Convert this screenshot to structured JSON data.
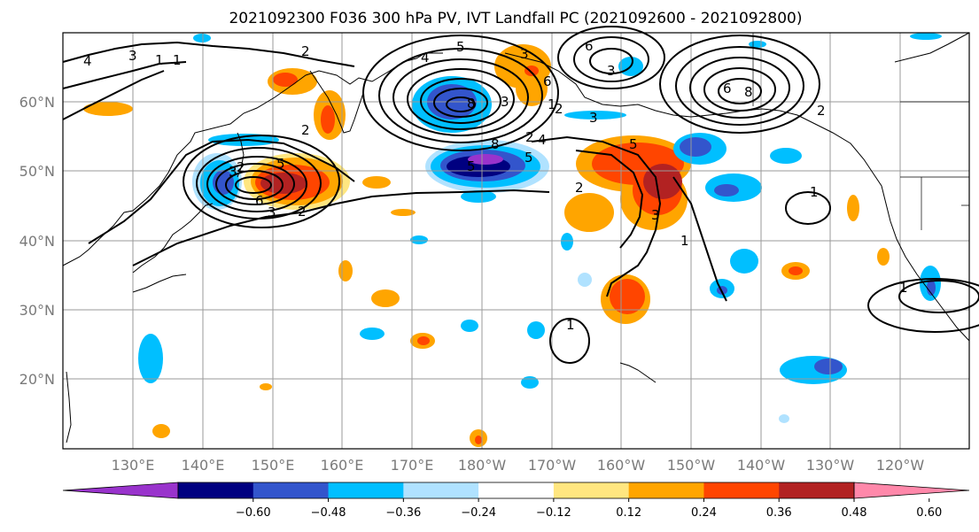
{
  "title": "2021092300 F036 300 hPa PV, IVT Landfall PC (2021092600 - 2021092800)",
  "lat_labels": [
    "60°N",
    "50°N",
    "40°N",
    "30°N",
    "20°N"
  ],
  "lon_labels": [
    "130°E",
    "140°E",
    "150°E",
    "160°E",
    "170°E",
    "180°W",
    "170°W",
    "160°W",
    "150°W",
    "140°W",
    "130°W",
    "120°W"
  ],
  "colorbar": {
    "ticks": [
      "−0.60",
      "−0.48",
      "−0.36",
      "−0.24",
      "−0.12",
      "0.12",
      "0.24",
      "0.36",
      "0.48",
      "0.60"
    ],
    "colors": [
      "#9933cc",
      "#000080",
      "#3355cc",
      "#00bfff",
      "#b0e2ff",
      "#ffffff",
      "#ffe680",
      "#ffa500",
      "#ff4500",
      "#b22222",
      "#ff88aa"
    ]
  },
  "contour_labels": [
    "4",
    "3",
    "2",
    "1",
    "1",
    "2",
    "3",
    "2",
    "3",
    "5",
    "5",
    "5",
    "6",
    "4",
    "3",
    "8",
    "8",
    "3",
    "6",
    "2",
    "2",
    "5",
    "8",
    "6",
    "6",
    "3",
    "1",
    "2",
    "5",
    "4",
    "3",
    "3",
    "2",
    "2",
    "1",
    "1",
    "1",
    "1"
  ]
}
